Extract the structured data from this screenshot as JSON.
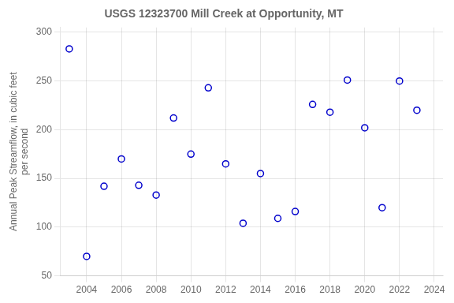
{
  "chart_data": {
    "type": "scatter",
    "title": "USGS 12323700 Mill Creek at Opportunity, MT",
    "ylabel": [
      "Annual Peak Streamflow, in cubic feet",
      "per second"
    ],
    "x": [
      2003,
      2004,
      2005,
      2006,
      2007,
      2008,
      2009,
      2010,
      2011,
      2012,
      2013,
      2014,
      2015,
      2016,
      2017,
      2018,
      2019,
      2020,
      2021,
      2022,
      2023
    ],
    "values": [
      283,
      70,
      142,
      170,
      143,
      133,
      212,
      175,
      243,
      165,
      104,
      155,
      109,
      116,
      226,
      218,
      251,
      202,
      120,
      250,
      220
    ],
    "color": "#0000CC",
    "marker": "circle",
    "xlim": [
      2002.5,
      2024.5
    ],
    "xticks": [
      2004,
      2006,
      2008,
      2010,
      2012,
      2014,
      2016,
      2018,
      2020,
      2022,
      2024
    ],
    "ylim": [
      50,
      305
    ],
    "yticks": [
      50,
      100,
      150,
      200,
      250,
      300
    ],
    "grid": true
  }
}
